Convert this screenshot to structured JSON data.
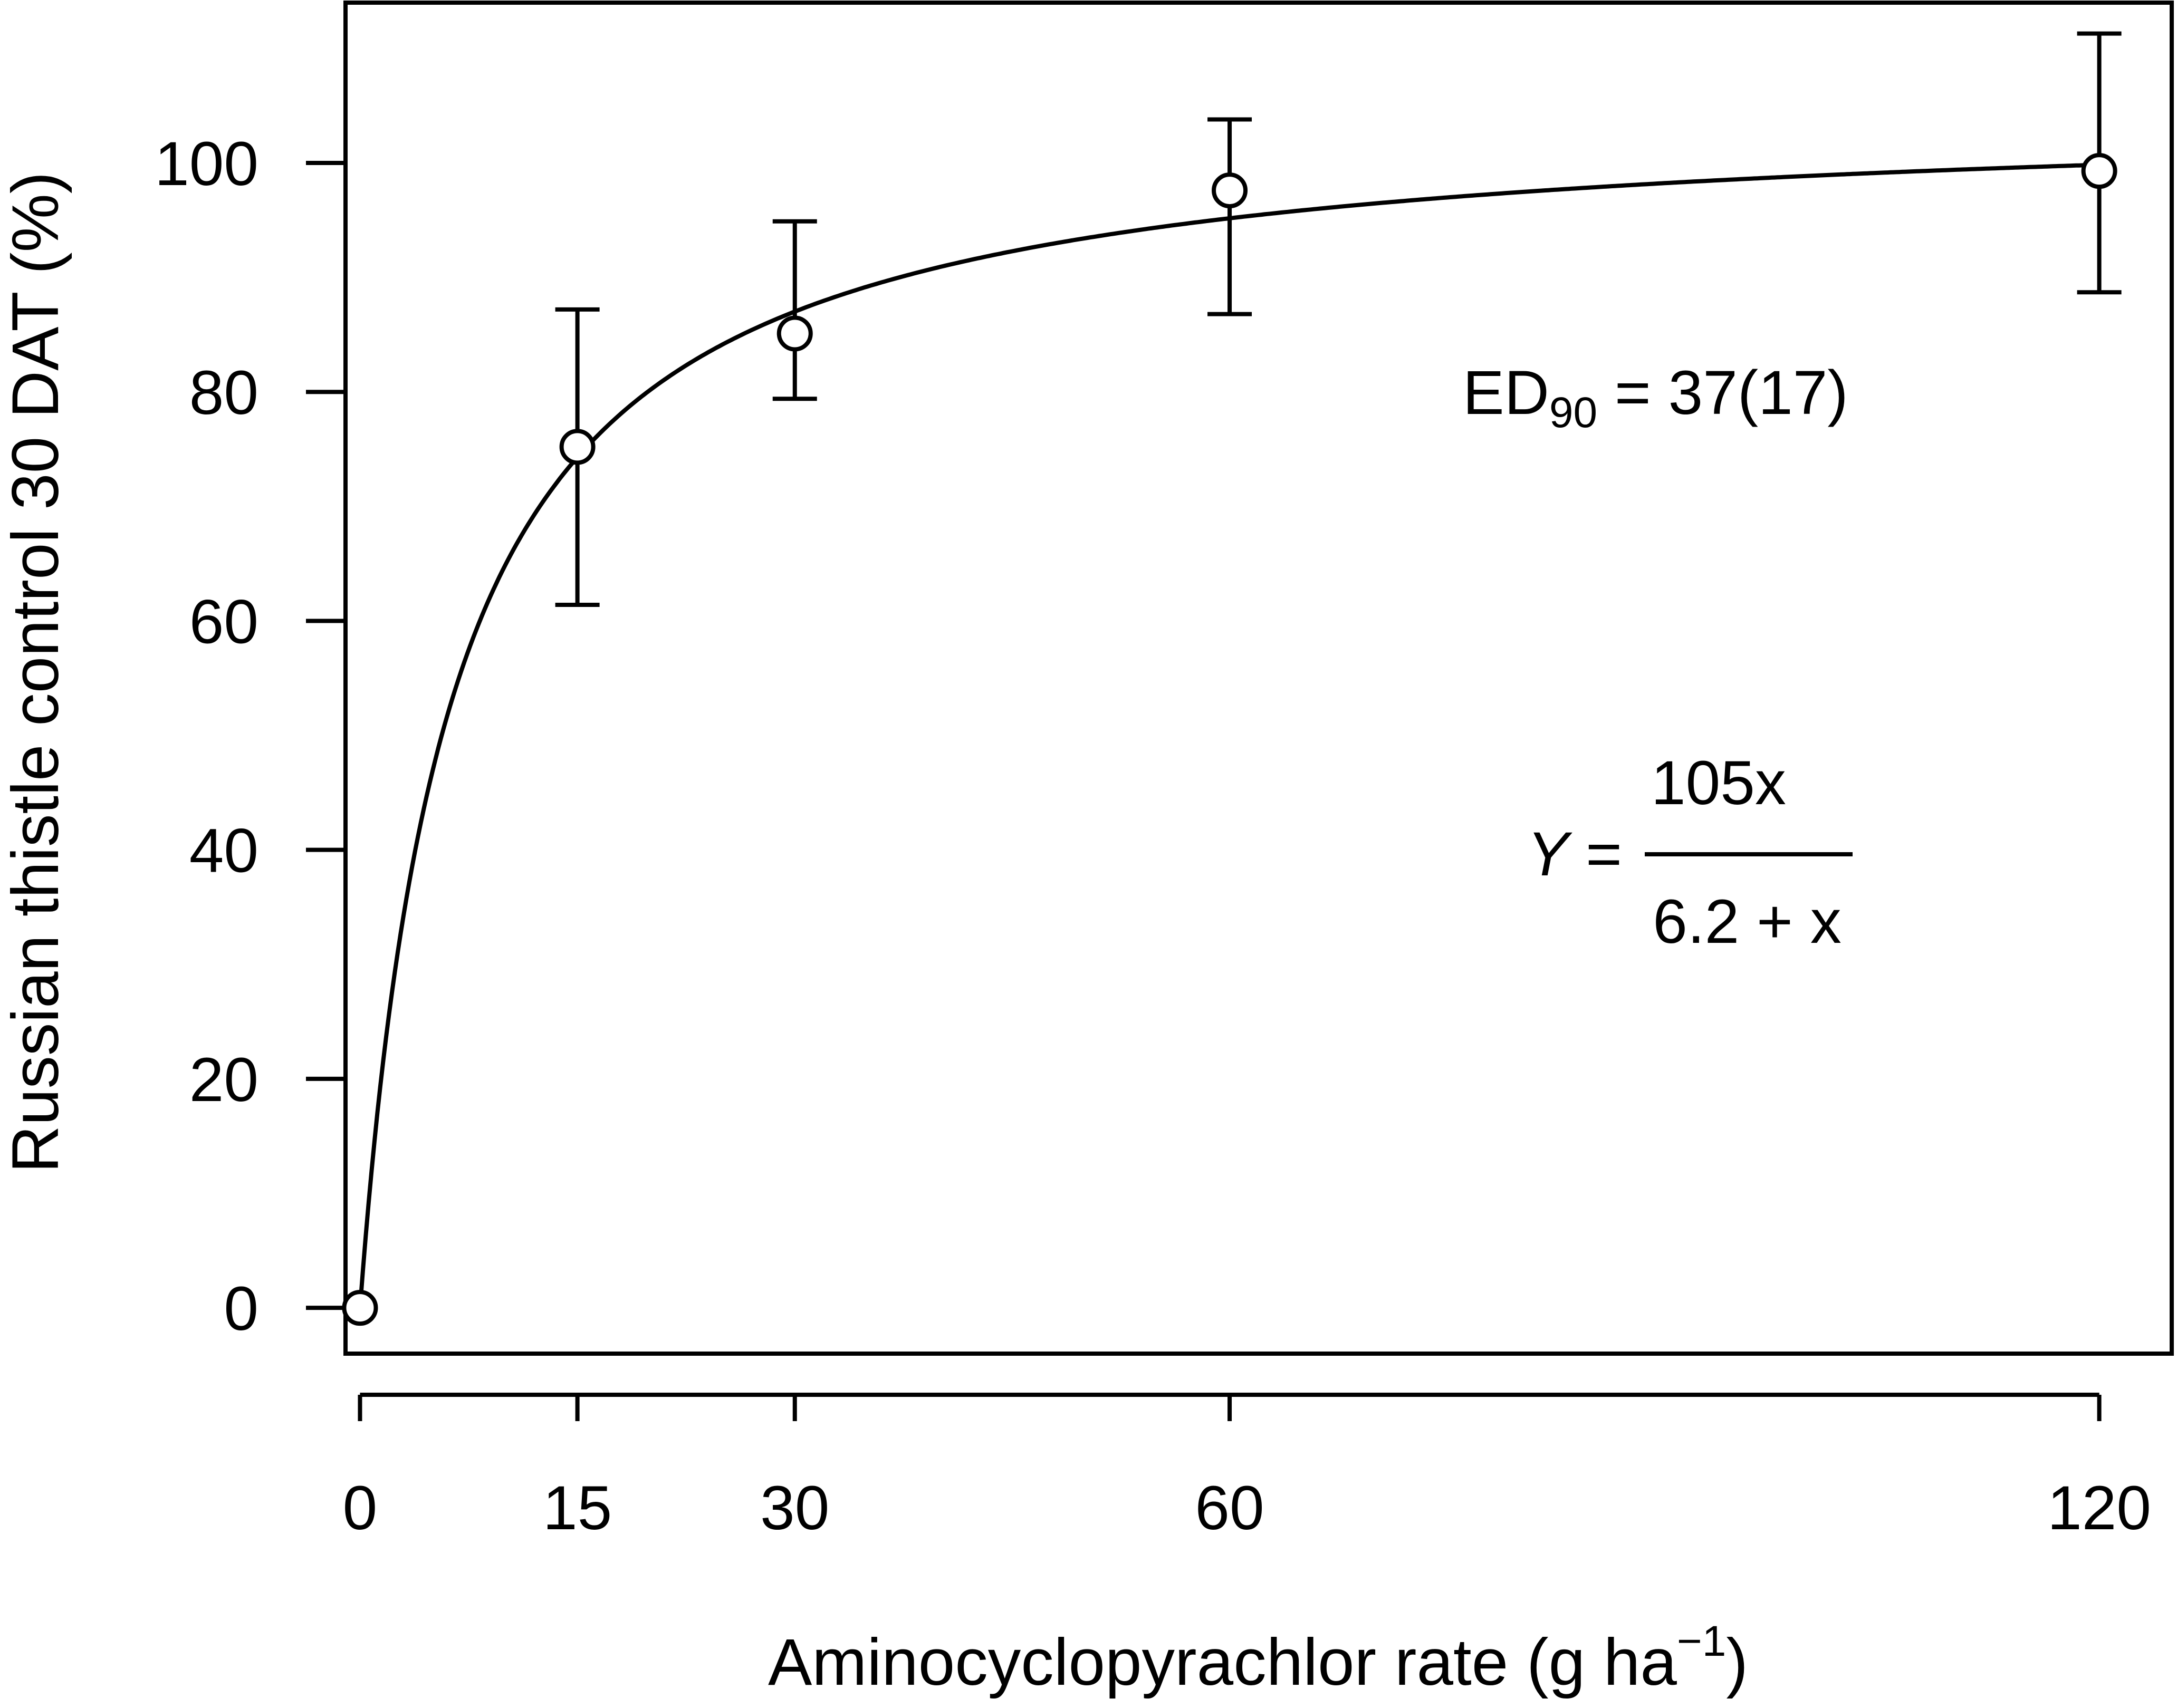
{
  "chart_data": {
    "type": "scatter",
    "xlabel": "Aminocyclopyrachlor rate (g ha",
    "xlabel_superscript": "−1",
    "xlabel_close": ")",
    "ylabel": "Russian thistle control 30 DAT (%)",
    "x_ticks": [
      0,
      15,
      30,
      60,
      120
    ],
    "y_ticks": [
      0,
      20,
      40,
      60,
      80,
      100
    ],
    "xlim": [
      -1,
      125
    ],
    "ylim": [
      -4,
      114
    ],
    "series": [
      {
        "points": [
          {
            "x": 0,
            "y": 0,
            "err_low": null,
            "err_high": null
          },
          {
            "x": 15,
            "y": 75.2,
            "err_low": 61.4,
            "err_high": 87.2
          },
          {
            "x": 30,
            "y": 85.1,
            "err_low": 79.4,
            "err_high": 94.9
          },
          {
            "x": 60,
            "y": 97.6,
            "err_low": 86.8,
            "err_high": 103.8
          },
          {
            "x": 120,
            "y": 99.3,
            "err_low": 88.7,
            "err_high": 111.3
          }
        ]
      }
    ],
    "fit": {
      "a": 105,
      "b": 6.2
    },
    "annotations": {
      "ed90_main": "ED",
      "ed90_sub": "90",
      "ed90_value": " = 37(17)",
      "eq_lhs": "Y =",
      "eq_num": "105x",
      "eq_den": "6.2 + x"
    },
    "colors": {
      "line": "#000000",
      "background": "#ffffff"
    }
  }
}
